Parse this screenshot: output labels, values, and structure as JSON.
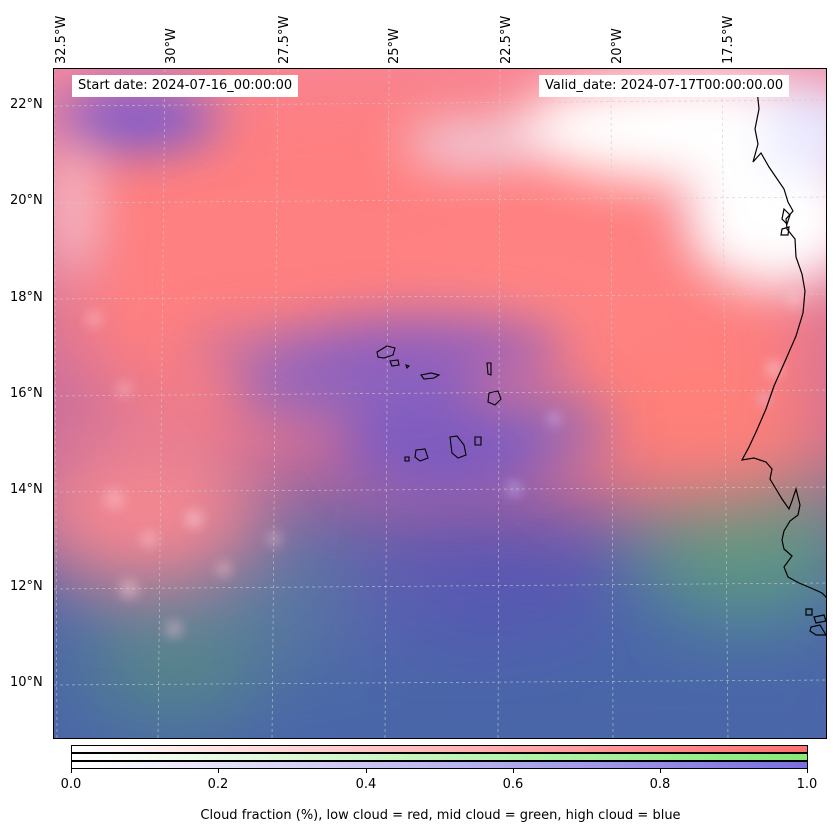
{
  "map": {
    "start_date": "Start date: 2024-07-16_00:00:00",
    "valid_date": "Valid_date: 2024-07-17T00:00:00.00",
    "lon_labels": [
      "32.5°W",
      "30°W",
      "27.5°W",
      "25°W",
      "22.5°W",
      "20°W",
      "17.5°W"
    ],
    "lat_labels": [
      "22°N",
      "20°N",
      "18°N",
      "16°N",
      "14°N",
      "12°N",
      "10°N"
    ],
    "layers": {
      "low_cloud_color": "#ff7070",
      "mid_cloud_color": "#86ea78",
      "high_cloud_color": "#6a5cd8",
      "coastline_color": "#000000"
    }
  },
  "colorbar": {
    "ticks": [
      "0.0",
      "0.2",
      "0.4",
      "0.6",
      "0.8",
      "1.0"
    ],
    "label": "Cloud fraction (%), low cloud = red, mid cloud = green, high cloud = blue",
    "bars": [
      "low",
      "mid",
      "high"
    ]
  }
}
